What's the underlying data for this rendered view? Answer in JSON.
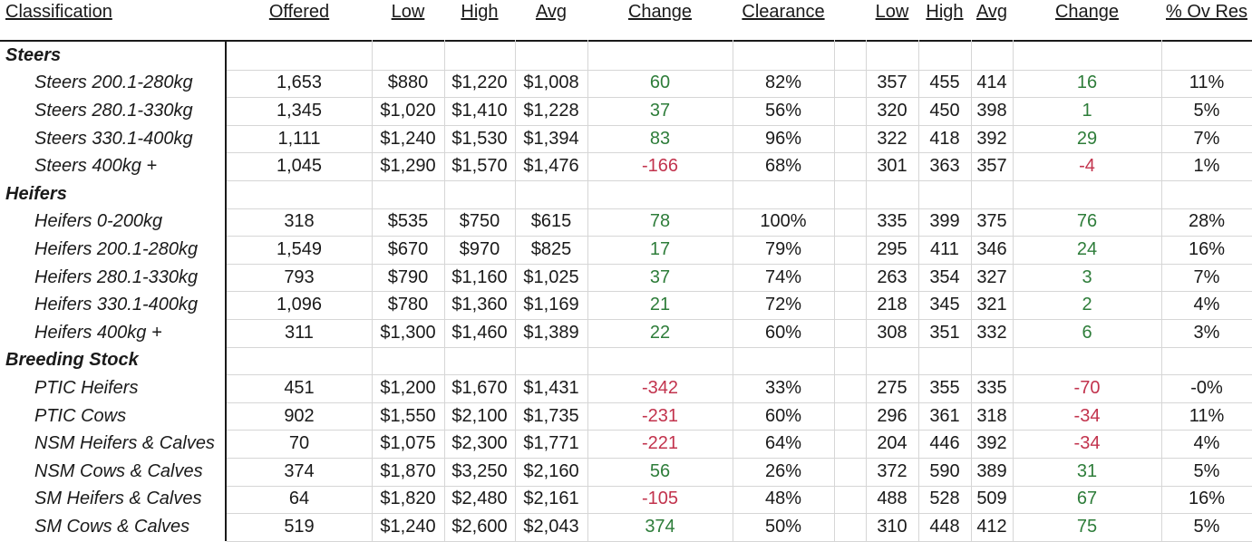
{
  "headers": {
    "classification": "Classification",
    "offered": "Offered",
    "low": "Low",
    "high": "High",
    "avg": "Avg",
    "change": "Change",
    "clearance": "Clearance",
    "low2": "Low",
    "high2": "High",
    "avg2": "Avg",
    "change2": "Change",
    "ov_res": "% Ov Res"
  },
  "colors": {
    "positive": "#2e7d3a",
    "negative": "#c2334d"
  },
  "rows": [
    {
      "type": "group",
      "label": "Steers"
    },
    {
      "type": "item",
      "label": "Steers 200.1-280kg",
      "offered": "1,653",
      "low": "$880",
      "high": "$1,220",
      "avg": "$1,008",
      "change": "60",
      "clearance": "82%",
      "low2": "357",
      "high2": "455",
      "avg2": "414",
      "change2": "16",
      "ov_res": "11%"
    },
    {
      "type": "item",
      "label": "Steers 280.1-330kg",
      "offered": "1,345",
      "low": "$1,020",
      "high": "$1,410",
      "avg": "$1,228",
      "change": "37",
      "clearance": "56%",
      "low2": "320",
      "high2": "450",
      "avg2": "398",
      "change2": "1",
      "ov_res": "5%"
    },
    {
      "type": "item",
      "label": "Steers 330.1-400kg",
      "offered": "1,111",
      "low": "$1,240",
      "high": "$1,530",
      "avg": "$1,394",
      "change": "83",
      "clearance": "96%",
      "low2": "322",
      "high2": "418",
      "avg2": "392",
      "change2": "29",
      "ov_res": "7%"
    },
    {
      "type": "item",
      "label": "Steers 400kg +",
      "offered": "1,045",
      "low": "$1,290",
      "high": "$1,570",
      "avg": "$1,476",
      "change": "-166",
      "clearance": "68%",
      "low2": "301",
      "high2": "363",
      "avg2": "357",
      "change2": "-4",
      "ov_res": "1%"
    },
    {
      "type": "group",
      "label": "Heifers"
    },
    {
      "type": "item",
      "label": "Heifers 0-200kg",
      "offered": "318",
      "low": "$535",
      "high": "$750",
      "avg": "$615",
      "change": "78",
      "clearance": "100%",
      "low2": "335",
      "high2": "399",
      "avg2": "375",
      "change2": "76",
      "ov_res": "28%"
    },
    {
      "type": "item",
      "label": "Heifers 200.1-280kg",
      "offered": "1,549",
      "low": "$670",
      "high": "$970",
      "avg": "$825",
      "change": "17",
      "clearance": "79%",
      "low2": "295",
      "high2": "411",
      "avg2": "346",
      "change2": "24",
      "ov_res": "16%"
    },
    {
      "type": "item",
      "label": "Heifers 280.1-330kg",
      "offered": "793",
      "low": "$790",
      "high": "$1,160",
      "avg": "$1,025",
      "change": "37",
      "clearance": "74%",
      "low2": "263",
      "high2": "354",
      "avg2": "327",
      "change2": "3",
      "ov_res": "7%"
    },
    {
      "type": "item",
      "label": "Heifers 330.1-400kg",
      "offered": "1,096",
      "low": "$780",
      "high": "$1,360",
      "avg": "$1,169",
      "change": "21",
      "clearance": "72%",
      "low2": "218",
      "high2": "345",
      "avg2": "321",
      "change2": "2",
      "ov_res": "4%"
    },
    {
      "type": "item",
      "label": "Heifers 400kg +",
      "offered": "311",
      "low": "$1,300",
      "high": "$1,460",
      "avg": "$1,389",
      "change": "22",
      "clearance": "60%",
      "low2": "308",
      "high2": "351",
      "avg2": "332",
      "change2": "6",
      "ov_res": "3%"
    },
    {
      "type": "group",
      "label": "Breeding Stock"
    },
    {
      "type": "item",
      "label": "PTIC Heifers",
      "offered": "451",
      "low": "$1,200",
      "high": "$1,670",
      "avg": "$1,431",
      "change": "-342",
      "clearance": "33%",
      "low2": "275",
      "high2": "355",
      "avg2": "335",
      "change2": "-70",
      "ov_res": "-0%"
    },
    {
      "type": "item",
      "label": "PTIC Cows",
      "offered": "902",
      "low": "$1,550",
      "high": "$2,100",
      "avg": "$1,735",
      "change": "-231",
      "clearance": "60%",
      "low2": "296",
      "high2": "361",
      "avg2": "318",
      "change2": "-34",
      "ov_res": "11%"
    },
    {
      "type": "item",
      "label": "NSM Heifers & Calves",
      "offered": "70",
      "low": "$1,075",
      "high": "$2,300",
      "avg": "$1,771",
      "change": "-221",
      "clearance": "64%",
      "low2": "204",
      "high2": "446",
      "avg2": "392",
      "change2": "-34",
      "ov_res": "4%"
    },
    {
      "type": "item",
      "label": "NSM Cows & Calves",
      "offered": "374",
      "low": "$1,870",
      "high": "$3,250",
      "avg": "$2,160",
      "change": "56",
      "clearance": "26%",
      "low2": "372",
      "high2": "590",
      "avg2": "389",
      "change2": "31",
      "ov_res": "5%"
    },
    {
      "type": "item",
      "label": "SM Heifers & Calves",
      "offered": "64",
      "low": "$1,820",
      "high": "$2,480",
      "avg": "$2,161",
      "change": "-105",
      "clearance": "48%",
      "low2": "488",
      "high2": "528",
      "avg2": "509",
      "change2": "67",
      "ov_res": "16%"
    },
    {
      "type": "item",
      "label": "SM Cows & Calves",
      "offered": "519",
      "low": "$1,240",
      "high": "$2,600",
      "avg": "$2,043",
      "change": "374",
      "clearance": "50%",
      "low2": "310",
      "high2": "448",
      "avg2": "412",
      "change2": "75",
      "ov_res": "5%"
    }
  ]
}
